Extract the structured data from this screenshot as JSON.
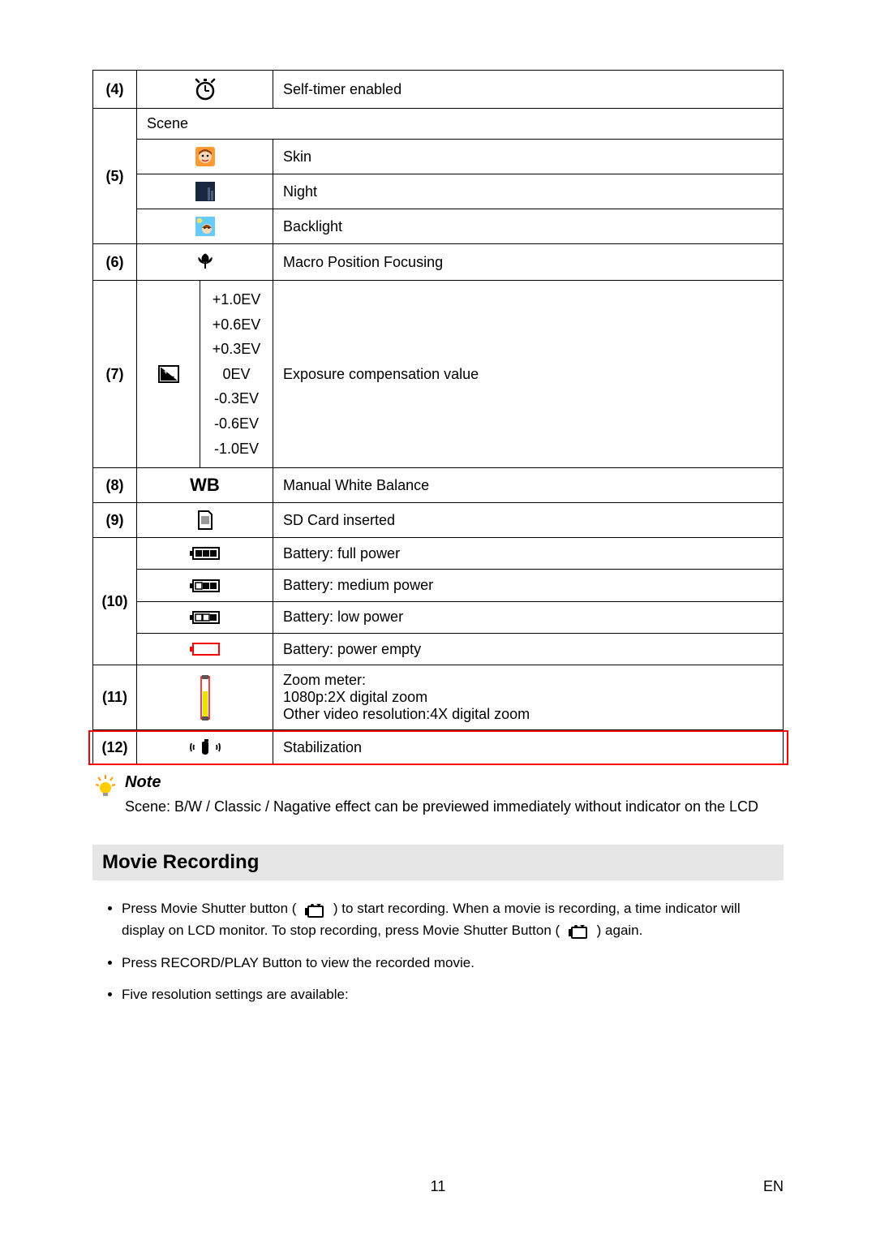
{
  "colors": {
    "border": "#000000",
    "highlight": "#ff0000",
    "section_bg": "#e6e6e6",
    "text": "#000000",
    "skin_bg": "#ff9933",
    "skin_face": "#ffd9b3",
    "skin_hair": "#8b4513",
    "night_dark": "#1a2740",
    "night_moon": "#ffe066",
    "backlight_bg": "#66ccff",
    "macro": "#000000",
    "ev_box": "#000000",
    "battery_full": "#000000",
    "battery_empty": "#ff0000",
    "zoom_bar": "#e6e600",
    "zoom_border": "#ff0000",
    "note_bulb": "#ffcc00",
    "note_rays": "#ff9900"
  },
  "rows": {
    "r4": {
      "num": "(4)",
      "desc": "Self-timer enabled"
    },
    "r5": {
      "num": "(5)",
      "label": "Scene",
      "skin": "Skin",
      "night": "Night",
      "backlight": "Backlight"
    },
    "r6": {
      "num": "(6)",
      "desc": "Macro Position Focusing"
    },
    "r7": {
      "num": "(7)",
      "desc": "Exposure compensation value",
      "ev": [
        "+1.0EV",
        "+0.6EV",
        "+0.3EV",
        "0EV",
        "-0.3EV",
        "-0.6EV",
        "-1.0EV"
      ]
    },
    "r8": {
      "num": "(8)",
      "label": "WB",
      "desc": "Manual White Balance"
    },
    "r9": {
      "num": "(9)",
      "desc": "SD Card inserted"
    },
    "r10": {
      "num": "(10)",
      "full": "Battery: full power",
      "medium": "Battery: medium power",
      "low": "Battery: low power",
      "empty": "Battery: power empty"
    },
    "r11": {
      "num": "(11)",
      "desc_l1": "Zoom meter:",
      "desc_l2": "1080p:2X digital zoom",
      "desc_l3": "Other video resolution:4X digital zoom"
    },
    "r12": {
      "num": "(12)",
      "desc": "Stabilization"
    }
  },
  "note": {
    "title": "Note",
    "text": "Scene: B/W / Classic / Nagative effect can be previewed immediately without indicator on the LCD"
  },
  "section_header": "Movie Recording",
  "instructions": {
    "i1a": "Press Movie Shutter button (",
    "i1b": ") to start recording. When a movie is recording, a time indicator will display on LCD monitor. To stop recording, press Movie Shutter Button (",
    "i1c": ") again.",
    "i2": "Press RECORD/PLAY Button to view the recorded movie.",
    "i3": "Five resolution settings are available:"
  },
  "footer": {
    "page": "11",
    "lang": "EN"
  }
}
